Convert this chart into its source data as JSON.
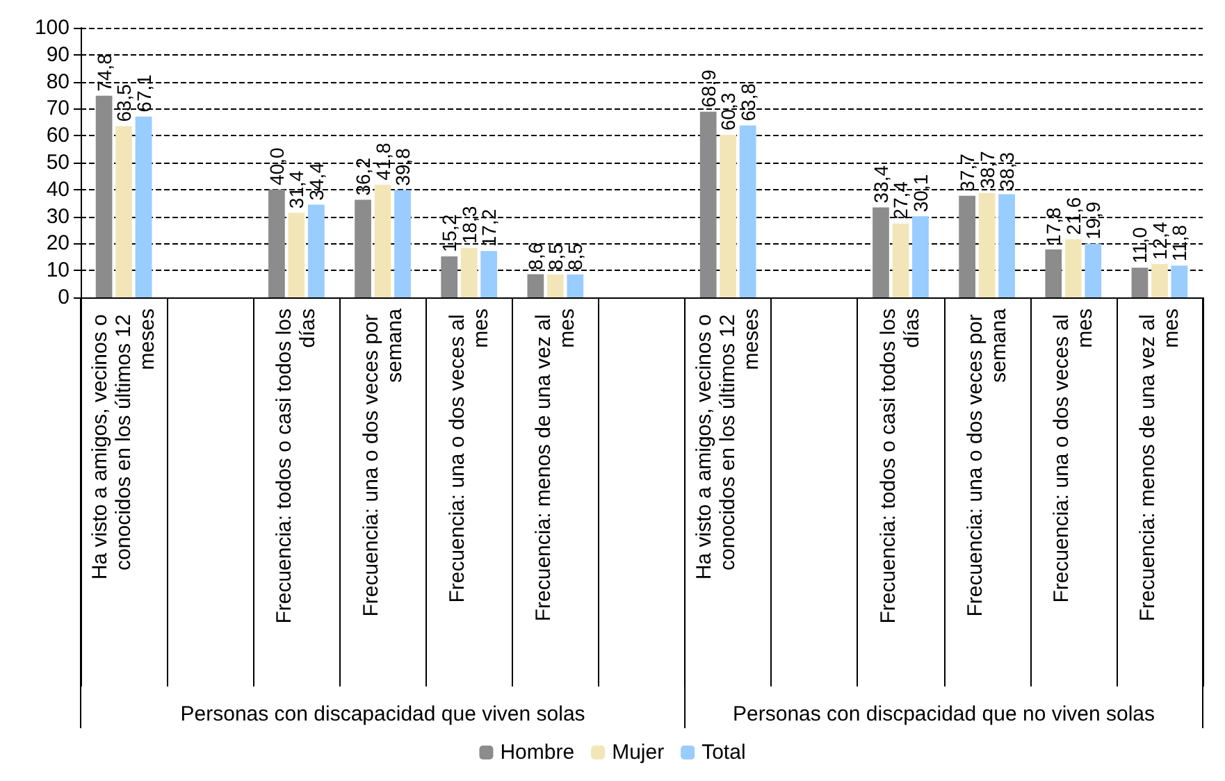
{
  "chart_data": {
    "type": "bar",
    "categories": [
      "Ha visto a amigos, vecinos o conocidos en los últimos 12 meses",
      null,
      "Frecuencia: todos o casi todos los días",
      "Frecuencia: una o dos veces por semana",
      "Frecuencia: una o dos veces al mes",
      "Frecuencia: menos de una vez al mes",
      null,
      "Ha visto a amigos, vecinos o conocidos en los últimos 12 meses",
      null,
      "Frecuencia: todos o casi todos los días",
      "Frecuencia: una o dos veces por semana",
      "Frecuencia: una o dos veces al mes",
      "Frecuencia: menos de una vez al mes"
    ],
    "series": [
      {
        "name": "Hombre",
        "color": "#8c8c8c",
        "values": [
          74.8,
          null,
          40.0,
          36.2,
          15.2,
          8.6,
          null,
          68.9,
          null,
          33.4,
          37.7,
          17.8,
          11.0
        ],
        "value_labels": [
          "74,8",
          null,
          "40,0",
          "36,2",
          "15,2",
          "8,6",
          null,
          "68,9",
          null,
          "33,4",
          "37,7",
          "17,8",
          "11,0"
        ]
      },
      {
        "name": "Mujer",
        "color": "#f2e6b8",
        "values": [
          63.5,
          null,
          31.4,
          41.8,
          18.3,
          8.5,
          null,
          60.3,
          null,
          27.4,
          38.7,
          21.6,
          12.4
        ],
        "value_labels": [
          "63,5",
          null,
          "31,4",
          "41,8",
          "18,3",
          "8,5",
          null,
          "60,3",
          null,
          "27,4",
          "38,7",
          "21,6",
          "12,4"
        ]
      },
      {
        "name": "Total",
        "color": "#99ccff",
        "values": [
          67.1,
          null,
          34.4,
          39.8,
          17.2,
          8.5,
          null,
          63.8,
          null,
          30.1,
          38.3,
          19.9,
          11.8
        ],
        "value_labels": [
          "67,1",
          null,
          "34,4",
          "39,8",
          "17,2",
          "8,5",
          null,
          "63,8",
          null,
          "30,1",
          "38,3",
          "19,9",
          "11,8"
        ]
      }
    ],
    "ylim": [
      0,
      100
    ],
    "yticks": [
      0,
      10,
      20,
      30,
      40,
      50,
      60,
      70,
      80,
      90,
      100
    ],
    "grid": "y",
    "legend": "bottom",
    "annotations": [
      "Personas con discapacidad que viven solas",
      "Personas con discpacidad que no viven solas"
    ]
  }
}
